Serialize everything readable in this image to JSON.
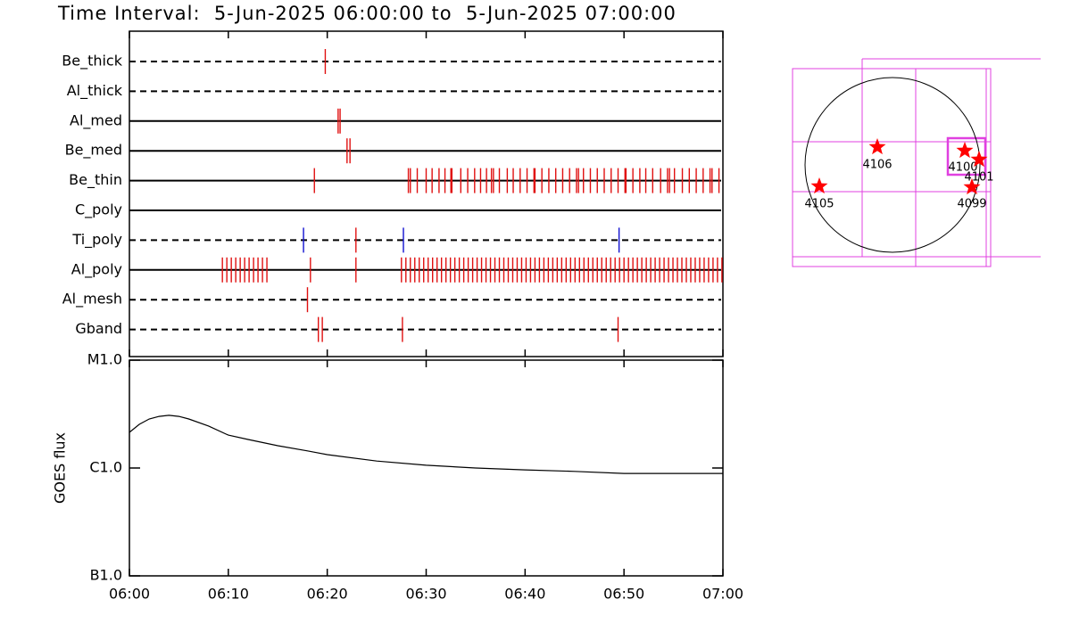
{
  "chart_data": [
    {
      "type": "timeline",
      "title": "Time Interval:  5-Jun-2025 06:00:00 to  5-Jun-2025 07:00:00",
      "xlim": [
        0,
        60
      ],
      "rows": [
        {
          "name": "Be_thick",
          "line": "dashed",
          "series": [
            {
              "color": "#e01010",
              "values": [
                19.8
              ]
            }
          ]
        },
        {
          "name": "Al_thick",
          "line": "dashed",
          "series": []
        },
        {
          "name": "Al_med",
          "line": "solid",
          "series": [
            {
              "color": "#e01010",
              "values": [
                21.1,
                21.3
              ]
            }
          ]
        },
        {
          "name": "Be_med",
          "line": "solid",
          "series": [
            {
              "color": "#e01010",
              "values": [
                22.0,
                22.3
              ]
            }
          ]
        },
        {
          "name": "Be_thin",
          "line": "solid",
          "series": [
            {
              "color": "#e01010",
              "values": [
                18.7,
                28.2,
                28.4,
                29.1,
                30.0,
                30.6,
                31.3,
                31.9,
                32.5,
                32.6,
                33.5,
                34.2,
                34.9,
                35.5,
                36.1,
                36.6,
                36.8,
                37.4,
                38.2,
                38.8,
                39.5,
                40.2,
                40.9,
                41.0,
                41.7,
                42.4,
                43.1,
                43.8,
                44.5,
                45.2,
                45.4,
                45.9,
                46.6,
                47.3,
                48.0,
                48.7,
                49.4,
                50.1,
                50.2,
                50.9,
                51.6,
                52.2,
                52.9,
                53.7,
                54.4,
                54.6,
                55.1,
                55.9,
                56.6,
                57.3,
                58.0,
                58.7,
                58.9,
                59.6
              ]
            }
          ]
        },
        {
          "name": "C_poly",
          "line": "solid",
          "series": []
        },
        {
          "name": "Ti_poly",
          "line": "dashed",
          "series": [
            {
              "color": "#e01010",
              "values": [
                22.9
              ]
            },
            {
              "color": "#1010d0",
              "values": [
                17.6,
                27.7,
                49.5
              ]
            }
          ]
        },
        {
          "name": "Al_poly",
          "line": "solid",
          "series": [
            {
              "color": "#e01010",
              "values": [
                9.4,
                9.85,
                10.3,
                10.75,
                11.2,
                11.65,
                12.1,
                12.55,
                13.0,
                13.45,
                13.9,
                18.3,
                22.9,
                27.5,
                27.95,
                28.4,
                28.85,
                29.3,
                29.75,
                30.2,
                30.65,
                31.1,
                31.55,
                32.0,
                32.45,
                32.9,
                33.35,
                33.8,
                34.25,
                34.7,
                35.15,
                35.6,
                36.05,
                36.5,
                36.95,
                37.4,
                37.85,
                38.3,
                38.75,
                39.2,
                39.65,
                40.1,
                40.55,
                41.0,
                41.45,
                41.9,
                42.35,
                42.8,
                43.25,
                43.7,
                44.15,
                44.6,
                45.05,
                45.5,
                45.95,
                46.4,
                46.85,
                47.3,
                47.75,
                48.2,
                48.65,
                49.1,
                49.55,
                50.0,
                50.45,
                50.9,
                51.35,
                51.8,
                52.25,
                52.7,
                53.15,
                53.6,
                54.05,
                54.5,
                54.95,
                55.4,
                55.85,
                56.3,
                56.75,
                57.2,
                57.65,
                58.1,
                58.55,
                59.0,
                59.45,
                59.9
              ]
            }
          ]
        },
        {
          "name": "Al_mesh",
          "line": "dashed",
          "series": [
            {
              "color": "#e01010",
              "values": [
                18.0
              ]
            }
          ]
        },
        {
          "name": "Gband",
          "line": "dashed",
          "series": [
            {
              "color": "#e01010",
              "values": [
                19.1,
                19.5,
                27.6,
                49.4
              ]
            }
          ]
        }
      ]
    },
    {
      "type": "line",
      "ylabel": "GOES flux",
      "log_y": true,
      "color": "#000000",
      "xlim": [
        0,
        60
      ],
      "xticks": [
        {
          "value": 0,
          "label": "06:00"
        },
        {
          "value": 10,
          "label": "06:10"
        },
        {
          "value": 20,
          "label": "06:20"
        },
        {
          "value": 30,
          "label": "06:30"
        },
        {
          "value": 40,
          "label": "06:40"
        },
        {
          "value": 50,
          "label": "06:50"
        },
        {
          "value": 60,
          "label": "07:00"
        }
      ],
      "ylim": [
        1e-07,
        1e-05
      ],
      "yticks": [
        {
          "value": 1e-07,
          "label": "B1.0"
        },
        {
          "value": 1e-06,
          "label": "C1.0"
        },
        {
          "value": 1e-05,
          "label": "M1.0"
        }
      ],
      "x": [
        0,
        1,
        2,
        3,
        4,
        5,
        6,
        8,
        10,
        12,
        15,
        18,
        20,
        25,
        30,
        35,
        40,
        45,
        50,
        55,
        60
      ],
      "values": [
        2.14e-06,
        2.54e-06,
        2.85e-06,
        3.01e-06,
        3.08e-06,
        3.01e-06,
        2.85e-06,
        2.45e-06,
        2.02e-06,
        1.84e-06,
        1.61e-06,
        1.44e-06,
        1.33e-06,
        1.16e-06,
        1.06e-06,
        1e-06,
        9.6e-07,
        9.3e-07,
        8.9e-07,
        8.9e-07,
        8.9e-07
      ]
    },
    {
      "type": "map",
      "regions": [
        "4106",
        "4100",
        "4101",
        "4099",
        "4105"
      ],
      "star_color": "#ff0000",
      "box_color": "#e040e0"
    }
  ]
}
